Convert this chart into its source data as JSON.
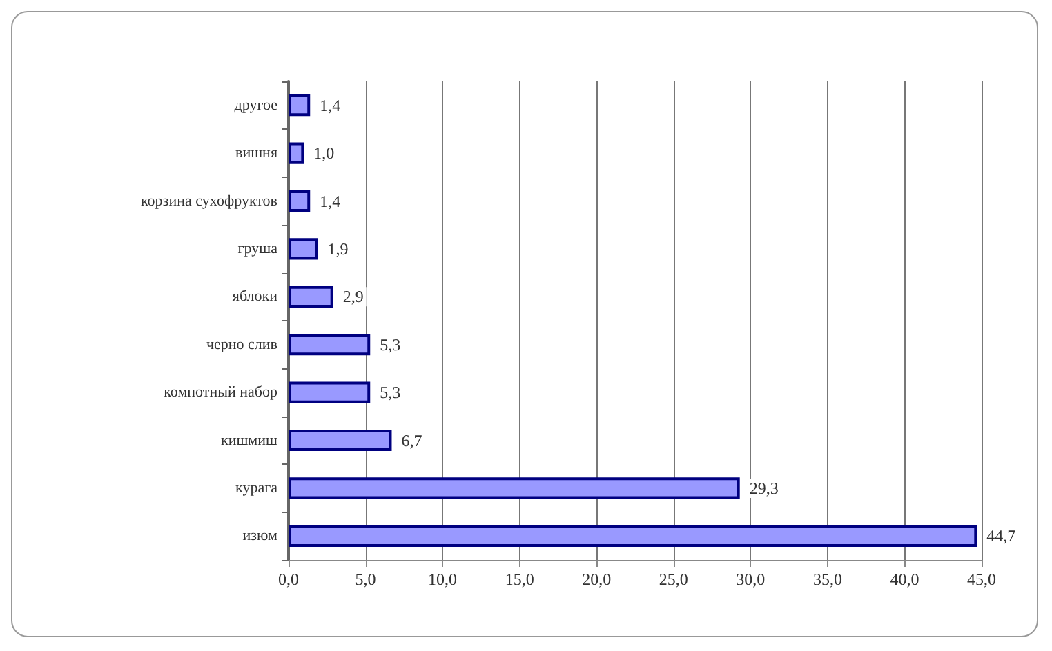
{
  "chart_data": {
    "type": "bar",
    "orientation": "horizontal",
    "categories": [
      "другое",
      "вишня",
      "корзина сухофруктов",
      "груша",
      "яблоки",
      "черно слив",
      "компотный набор",
      "кишмиш",
      "курага",
      "изюм"
    ],
    "values": [
      1.4,
      1.0,
      1.4,
      1.9,
      2.9,
      5.3,
      5.3,
      6.7,
      29.3,
      44.7
    ],
    "value_labels": [
      "1,4",
      "1,0",
      "1,4",
      "1,9",
      "2,9",
      "5,3",
      "5,3",
      "6,7",
      "29,3",
      "44,7"
    ],
    "color": "#9999ff",
    "xlim": [
      0,
      45
    ],
    "xticks": [
      {
        "value": 0,
        "label": "0,0"
      },
      {
        "value": 5,
        "label": "5,0"
      },
      {
        "value": 10,
        "label": "10,0"
      },
      {
        "value": 15,
        "label": "15,0"
      },
      {
        "value": 20,
        "label": "20,0"
      },
      {
        "value": 25,
        "label": "25,0"
      },
      {
        "value": 30,
        "label": "30,0"
      },
      {
        "value": 35,
        "label": "35,0"
      },
      {
        "value": 40,
        "label": "40,0"
      },
      {
        "value": 45,
        "label": "45,0"
      }
    ],
    "grid": "x"
  }
}
